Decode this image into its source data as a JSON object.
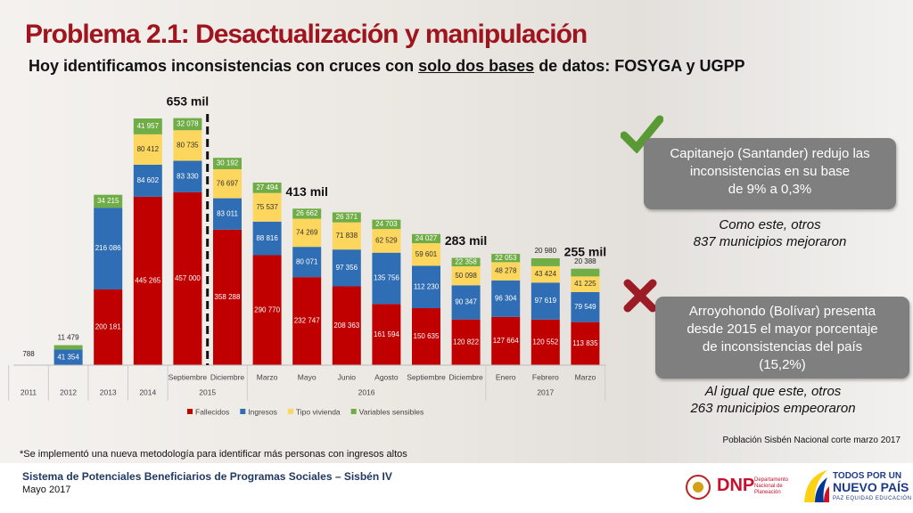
{
  "header": {
    "title": "Problema 2.1: Desactualización y manipulación",
    "subtitle": [
      "Hoy identificamos inconsistencias con cruces con ",
      "solo dos bases",
      " de datos: FOSYGA y UGPP"
    ]
  },
  "chart_data": {
    "type": "stacked_bar",
    "categories": [
      null,
      null,
      null,
      null,
      "Septiembre",
      "Diciembre",
      "Marzo",
      "Mayo",
      "Junio",
      "Agosto",
      "Septiembre",
      "Diciembre",
      "Enero",
      "Febrero",
      "Marzo"
    ],
    "years": [
      "2011",
      "2012",
      "2013",
      "2014",
      "2015",
      "2015",
      "2016",
      "2016",
      "2016",
      "2016",
      "2016",
      "2016",
      "2017",
      "2017",
      "2017"
    ],
    "series": [
      {
        "name": "Fallecidos",
        "color": "#c00000",
        "values": [
          null,
          null,
          200181,
          445265,
          457000,
          358288,
          290770,
          232747,
          208363,
          161594,
          150635,
          120822,
          127664,
          120552,
          113835
        ],
        "value_labels": [
          null,
          null,
          "200 181",
          "445 265",
          "457 000",
          "358 288",
          "290 770",
          "232 747",
          "208 363",
          "161 594",
          "150 635",
          "120 822",
          "127 664",
          "120 552",
          "113 835"
        ]
      },
      {
        "name": "Ingresos",
        "color": "#2f6eb5",
        "values": [
          null,
          41354,
          216086,
          84602,
          83330,
          83011,
          88816,
          80071,
          97356,
          135756,
          112230,
          90347,
          96304,
          97619,
          79549
        ],
        "value_labels": [
          null,
          "41 354",
          "216 086",
          "84 602",
          "83 330",
          "83 011",
          "88 816",
          "80 071",
          "97 356",
          "135 756",
          "112 230",
          "90 347",
          "96 304",
          "97 619",
          "79 549"
        ]
      },
      {
        "name": "Tipo vivienda",
        "color": "#fdd65e",
        "values": [
          null,
          null,
          null,
          80412,
          80735,
          76697,
          75537,
          74269,
          71838,
          62529,
          59601,
          50098,
          48278,
          43424,
          41225
        ],
        "value_labels": [
          null,
          null,
          null,
          "80 412",
          "80 735",
          "76 697",
          "75 537",
          "74 269",
          "71 838",
          "62 529",
          "59 601",
          "50 098",
          "48 278",
          "43 424",
          "41 225"
        ]
      },
      {
        "name": "Variables sensibles",
        "color": "#70ad47",
        "values": [
          788,
          11479,
          34215,
          41957,
          32078,
          30192,
          27494,
          26662,
          26371,
          24703,
          24027,
          22358,
          22053,
          20980,
          20388
        ],
        "value_labels": [
          null,
          "11 479",
          "34 215",
          "41 957",
          "32 078",
          "30 192",
          "27 494",
          "26 662",
          "26 371",
          "24 703",
          "24 027",
          "22 358",
          "22 053",
          "20 980",
          "20 388"
        ]
      }
    ],
    "annotations": [
      "653 mil",
      "413 mil",
      "283 mil",
      "255 mil"
    ]
  },
  "panel": {
    "box1": [
      "Capitanejo (Santander) redujo las",
      "inconsistencias en su base",
      "de 9% a 0,3%"
    ],
    "note1": [
      "Como este, otros",
      "837 municipios mejoraron"
    ],
    "box2": [
      "Arroyohondo (Bolívar) presenta",
      "desde 2015 el mayor porcentaje",
      "de inconsistencias del país",
      "(15,2%)"
    ],
    "note2": [
      "Al igual que este, otros",
      "263 municipios empeoraron"
    ],
    "source": "Población Sisbén Nacional corte marzo 2017"
  },
  "footnote": "*Se implementó una nueva metodología para identificar más personas con ingresos altos",
  "footer": {
    "line1": "Sistema de Potenciales Beneficiarios de Programas Sociales – Sisbén IV",
    "line2": "Mayo 2017",
    "dnp": "DNP",
    "dnp_sub": [
      "Departamento",
      "Nacional de",
      "Planeación"
    ],
    "gov": [
      "TODOS POR UN",
      "NUEVO PAÍS"
    ],
    "gov_sub": "PAZ  EQUIDAD  EDUCACIÓN"
  }
}
